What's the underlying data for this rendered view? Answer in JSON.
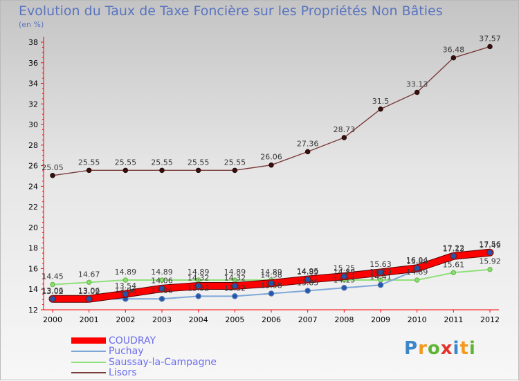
{
  "chart_data": {
    "type": "line",
    "title": "Evolution du Taux de Taxe Foncière sur les Propriétés Non Bâties",
    "unit_label": "(en %)",
    "x": [
      "2000",
      "2001",
      "2002",
      "2003",
      "2004",
      "2005",
      "2006",
      "2007",
      "2008",
      "2009",
      "2010",
      "2011",
      "2012"
    ],
    "ylim": [
      12,
      38
    ],
    "yticks": [
      12,
      14,
      16,
      18,
      20,
      22,
      24,
      26,
      28,
      30,
      32,
      34,
      36,
      38
    ],
    "grid": false,
    "legend_position": "bottom-left",
    "series": [
      {
        "name": "COUDRAY",
        "color": "#ff0000",
        "values": [
          13.06,
          13.06,
          13.54,
          14.06,
          14.32,
          14.32,
          14.58,
          14.95,
          15.25,
          15.63,
          16.04,
          17.22,
          17.56
        ]
      },
      {
        "name": "Puchay",
        "color": "#7ca7d8",
        "values": [
          13.02,
          13.02,
          13.06,
          13.06,
          13.32,
          13.32,
          13.58,
          13.85,
          14.13,
          14.41,
          15.89,
          17.13,
          17.49
        ]
      },
      {
        "name": "Saussay-la-Campagne",
        "color": "#8fe07a",
        "values": [
          14.45,
          14.67,
          14.89,
          14.89,
          14.89,
          14.89,
          14.89,
          14.89,
          14.89,
          14.89,
          14.89,
          15.61,
          15.92
        ]
      },
      {
        "name": "Lisors",
        "color": "#7a3a3a",
        "values": [
          25.05,
          25.55,
          25.55,
          25.55,
          25.55,
          25.55,
          26.06,
          27.36,
          28.73,
          31.5,
          33.13,
          36.48,
          37.57
        ]
      }
    ]
  },
  "logo": {
    "letters": [
      "P",
      "r",
      "o",
      "x",
      "i",
      "t",
      "i"
    ],
    "colors": [
      "#3a86c8",
      "#f39a1e",
      "#5fb533",
      "#e2332b",
      "#3a86c8",
      "#f39a1e",
      "#5fb533"
    ]
  }
}
